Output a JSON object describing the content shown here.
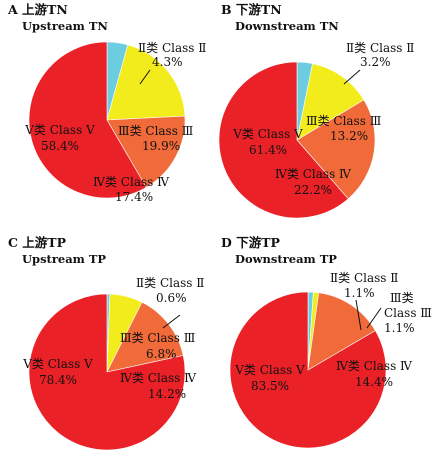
{
  "chart_data": [
    {
      "type": "pie",
      "panel": "A",
      "title": "上游TN",
      "subtitle": "Upstream TN",
      "slices": [
        {
          "category": "Ⅱ类 Class Ⅱ",
          "value": 4.3,
          "label": "4.3%",
          "color": "#6ccde0"
        },
        {
          "category": "Ⅲ类 Class Ⅲ",
          "value": 19.9,
          "label": "19.9%",
          "color": "#f2ec1d"
        },
        {
          "category": "Ⅳ类 Class Ⅳ",
          "value": 17.4,
          "label": "17.4%",
          "color": "#f06a3a"
        },
        {
          "category": "Ⅴ类 Class Ⅴ",
          "value": 58.4,
          "label": "58.4%",
          "color": "#ea2127"
        }
      ]
    },
    {
      "type": "pie",
      "panel": "B",
      "title": "下游TN",
      "subtitle": "Downstream TN",
      "slices": [
        {
          "category": "Ⅱ类 Class Ⅱ",
          "value": 3.2,
          "label": "3.2%",
          "color": "#6ccde0"
        },
        {
          "category": "Ⅲ类 Class Ⅲ",
          "value": 13.2,
          "label": "13.2%",
          "color": "#f2ec1d"
        },
        {
          "category": "Ⅳ类 Class Ⅳ",
          "value": 22.2,
          "label": "22.2%",
          "color": "#f06a3a"
        },
        {
          "category": "Ⅴ类 Class Ⅴ",
          "value": 61.4,
          "label": "61.4%",
          "color": "#ea2127"
        }
      ]
    },
    {
      "type": "pie",
      "panel": "C",
      "title": "上游TP",
      "subtitle": "Upstream TP",
      "slices": [
        {
          "category": "Ⅱ类 Class Ⅱ",
          "value": 0.6,
          "label": "0.6%",
          "color": "#6ccde0"
        },
        {
          "category": "Ⅲ类 Class Ⅲ",
          "value": 6.8,
          "label": "6.8%",
          "color": "#f2ec1d"
        },
        {
          "category": "Ⅳ类 Class Ⅳ",
          "value": 14.2,
          "label": "14.2%",
          "color": "#f06a3a"
        },
        {
          "category": "Ⅴ类 Class Ⅴ",
          "value": 78.4,
          "label": "78.4%",
          "color": "#ea2127"
        }
      ]
    },
    {
      "type": "pie",
      "panel": "D",
      "title": "下游TP",
      "subtitle": "Downstream TP",
      "slices": [
        {
          "category": "Ⅱ类 Class Ⅱ",
          "value": 1.1,
          "label": "1.1%",
          "color": "#6ccde0"
        },
        {
          "category": "Ⅲ类 Class Ⅲ",
          "value": 1.1,
          "label": "1.1%",
          "color": "#f2ec1d"
        },
        {
          "category": "Ⅳ类 Class Ⅳ",
          "value": 14.4,
          "label": "14.4%",
          "color": "#f06a3a"
        },
        {
          "category": "Ⅴ类 Class Ⅴ",
          "value": 83.5,
          "label": "83.5%",
          "color": "#ea2127"
        }
      ]
    }
  ]
}
